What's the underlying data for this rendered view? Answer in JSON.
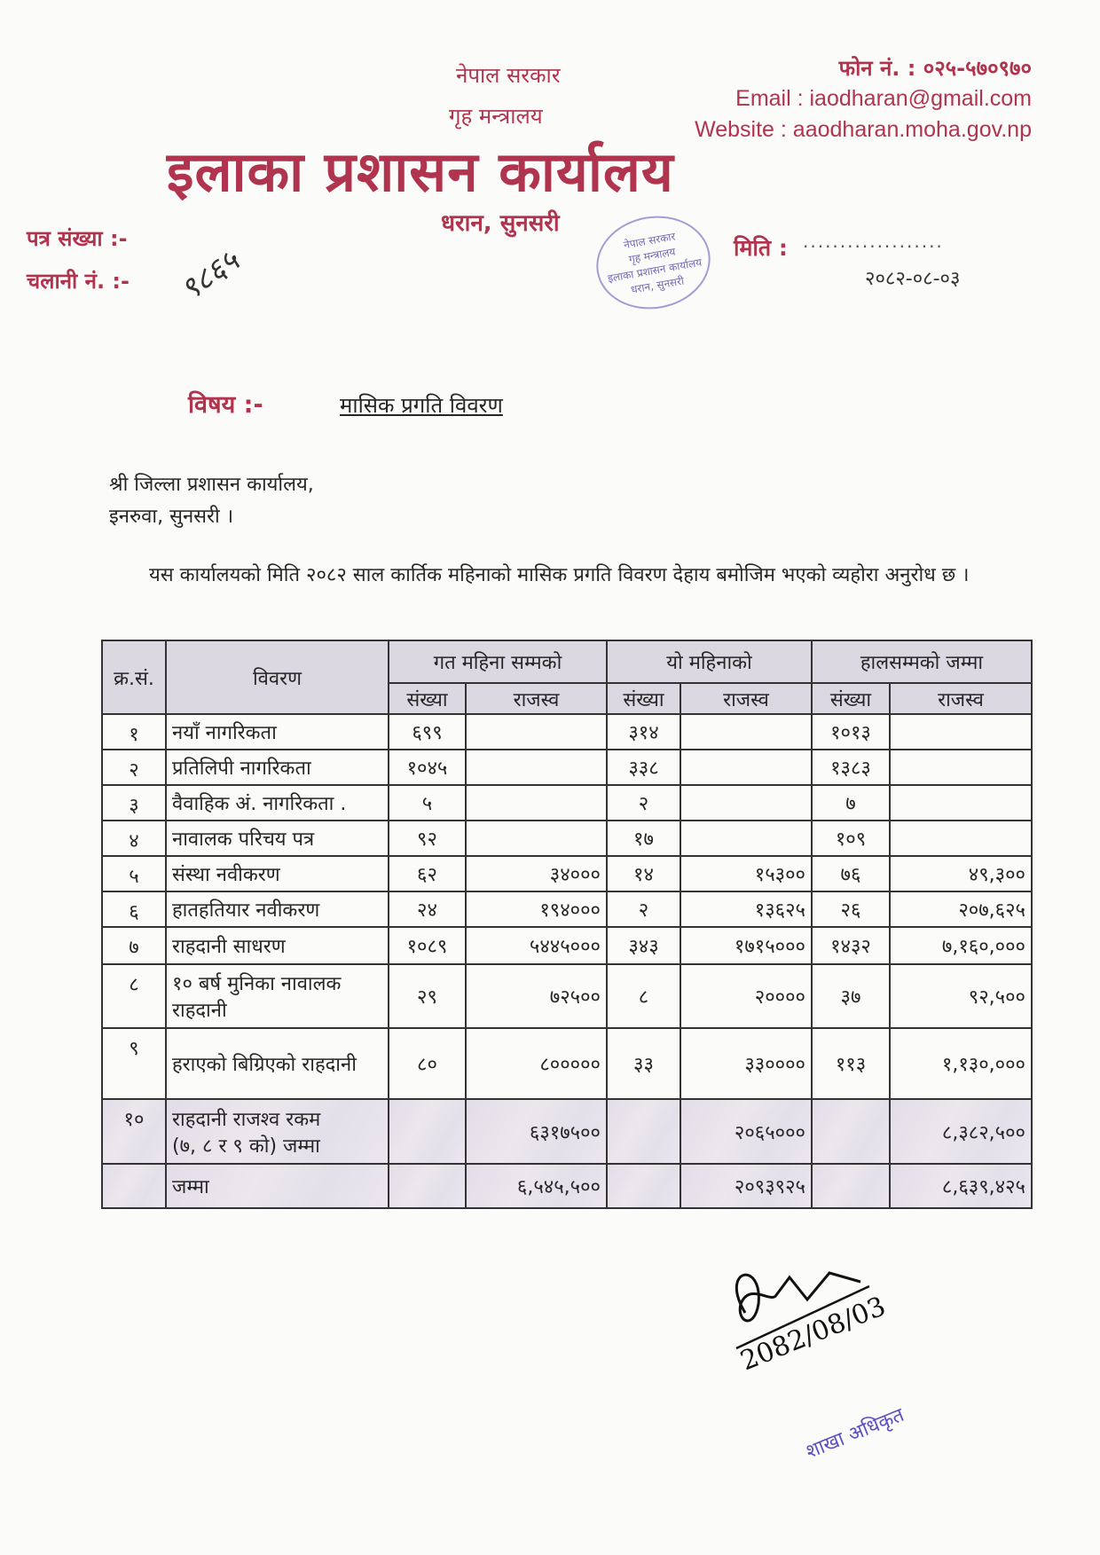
{
  "letterhead": {
    "government": "नेपाल सरकार",
    "ministry": "गृह मन्त्रालय",
    "office": "इलाका प्रशासन कार्यालय",
    "place": "धरान, सुनसरी",
    "phone": "फोन नं. : ०२५-५७०९७०",
    "email": "Email : iaodharan@gmail.com",
    "website": "Website : aaodharan.moha.gov.np",
    "brand_color": "#b1344e"
  },
  "refs": {
    "patra_label": "पत्र संख्या :-",
    "chalani_label": "चलानी नं. :-",
    "chalani_value": "९८६५",
    "miti_label": "मिति :",
    "miti_dots": "...................",
    "miti_value": "२०८२-०८-०३"
  },
  "seal": {
    "line1": "नेपाल सरकार",
    "line2": "गृह मन्त्रालय",
    "line3": "इलाका प्रशासन कार्यालय",
    "line4": "धरान, सुनसरी"
  },
  "subject": {
    "label": "विषय :-",
    "text": "मासिक प्रगति विवरण"
  },
  "addressee": {
    "line1": "श्री जिल्ला प्रशासन कार्यालय,",
    "line2": "इनरुवा, सुनसरी ।"
  },
  "body": "यस कार्यालयको मिति २०८२ साल कार्तिक महिनाको मासिक प्रगति विवरण देहाय बमोजिम भएको व्यहोरा अनुरोध छ ।",
  "table": {
    "headers": {
      "sn": "क्र.सं.",
      "desc": "विवरण",
      "prev": "गत महिना सम्मको",
      "cur": "यो महिनाको",
      "total": "हालसम्मको जम्मा",
      "count": "संख्या",
      "revenue": "राजस्व"
    },
    "rows": [
      {
        "sn": "१",
        "desc": [
          "नयाँ नागरिकता"
        ],
        "prev_count": "६९९",
        "prev_rev": "",
        "cur_count": "३१४",
        "cur_rev": "",
        "tot_count": "१०१३",
        "tot_rev": ""
      },
      {
        "sn": "२",
        "desc": [
          "प्रतिलिपी नागरिकता"
        ],
        "prev_count": "१०४५",
        "prev_rev": "",
        "cur_count": "३३८",
        "cur_rev": "",
        "tot_count": "१३८३",
        "tot_rev": ""
      },
      {
        "sn": "३",
        "desc": [
          "वैवाहिक अं. नागरिकता ."
        ],
        "prev_count": "५",
        "prev_rev": "",
        "cur_count": "२",
        "cur_rev": "",
        "tot_count": "७",
        "tot_rev": ""
      },
      {
        "sn": "४",
        "desc": [
          "नावालक परिचय पत्र"
        ],
        "prev_count": "९२",
        "prev_rev": "",
        "cur_count": "१७",
        "cur_rev": "",
        "tot_count": "१०९",
        "tot_rev": ""
      },
      {
        "sn": "५",
        "desc": [
          "संस्था नवीकरण"
        ],
        "prev_count": "६२",
        "prev_rev": "३४०००",
        "cur_count": "१४",
        "cur_rev": "१५३००",
        "tot_count": "७६",
        "tot_rev": "४९,३००"
      },
      {
        "sn": "६",
        "desc": [
          "हातहतियार नवीकरण"
        ],
        "prev_count": "२४",
        "prev_rev": "१९४०००",
        "cur_count": "२",
        "cur_rev": "१३६२५",
        "tot_count": "२६",
        "tot_rev": "२०७,६२५"
      },
      {
        "sn": "७",
        "desc": [
          "राहदानी  साधरण"
        ],
        "prev_count": "१०८९",
        "prev_rev": "५४४५०००",
        "cur_count": "३४३",
        "cur_rev": "१७१५०००",
        "tot_count": "१४३२",
        "tot_rev": "७,१६०,०००"
      },
      {
        "sn": "८",
        "desc": [
          "१० बर्ष मुनिका नावालक",
          "राहदानी"
        ],
        "prev_count": "२९",
        "prev_rev": "७२५००",
        "cur_count": "८",
        "cur_rev": "२००००",
        "tot_count": "३७",
        "tot_rev": "९२,५००"
      },
      {
        "sn": "९",
        "desc": [
          "हराएको बिग्रिएको राहदानी"
        ],
        "prev_count": "८०",
        "prev_rev": "८०००००",
        "cur_count": "३३",
        "cur_rev": "३३००००",
        "tot_count": "११३",
        "tot_rev": "१,१३०,०००"
      },
      {
        "sn": "१०",
        "desc": [
          "राहदानी राजश्व रकम",
          "(७, ८ र ९ को) जम्मा"
        ],
        "prev_count": "",
        "prev_rev": "६३१७५००",
        "cur_count": "",
        "cur_rev": "२०६५०००",
        "tot_count": "",
        "tot_rev": "८,३८२,५००",
        "shaded": true
      },
      {
        "sn": "",
        "desc": [
          "जम्मा"
        ],
        "prev_count": "",
        "prev_rev": "६,५४५,५००",
        "cur_count": "",
        "cur_rev": "२०९३९२५",
        "tot_count": "",
        "tot_rev": "८,६३९,४२५",
        "shaded": true
      }
    ]
  },
  "signature": {
    "date": "2082/08/03",
    "role": "शाखा अधिकृत"
  }
}
